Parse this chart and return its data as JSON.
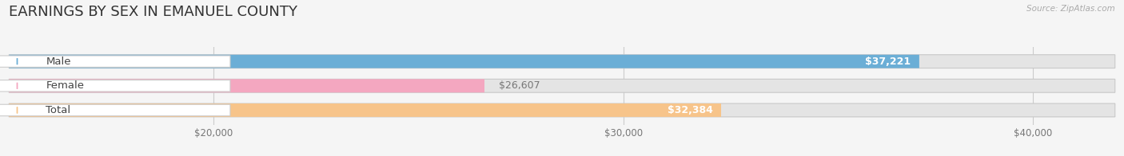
{
  "title": "EARNINGS BY SEX IN EMANUEL COUNTY",
  "source": "Source: ZipAtlas.com",
  "categories": [
    "Male",
    "Female",
    "Total"
  ],
  "values": [
    37221,
    26607,
    32384
  ],
  "bar_colors": [
    "#6baed6",
    "#f4a7c0",
    "#f7c48a"
  ],
  "value_labels": [
    "$37,221",
    "$26,607",
    "$32,384"
  ],
  "value_label_inside": [
    true,
    false,
    true
  ],
  "xmin": 15000,
  "xmax": 42000,
  "xticks": [
    20000,
    30000,
    40000
  ],
  "xtick_labels": [
    "$20,000",
    "$30,000",
    "$40,000"
  ],
  "fig_width": 14.06,
  "fig_height": 1.96,
  "background_color": "#f5f5f5",
  "bar_track_color": "#e4e4e4",
  "title_fontsize": 13,
  "bar_height": 0.55,
  "label_fontsize": 9.5,
  "value_fontsize": 9.0,
  "pill_color": "white",
  "pill_edge_color": "#cccccc"
}
